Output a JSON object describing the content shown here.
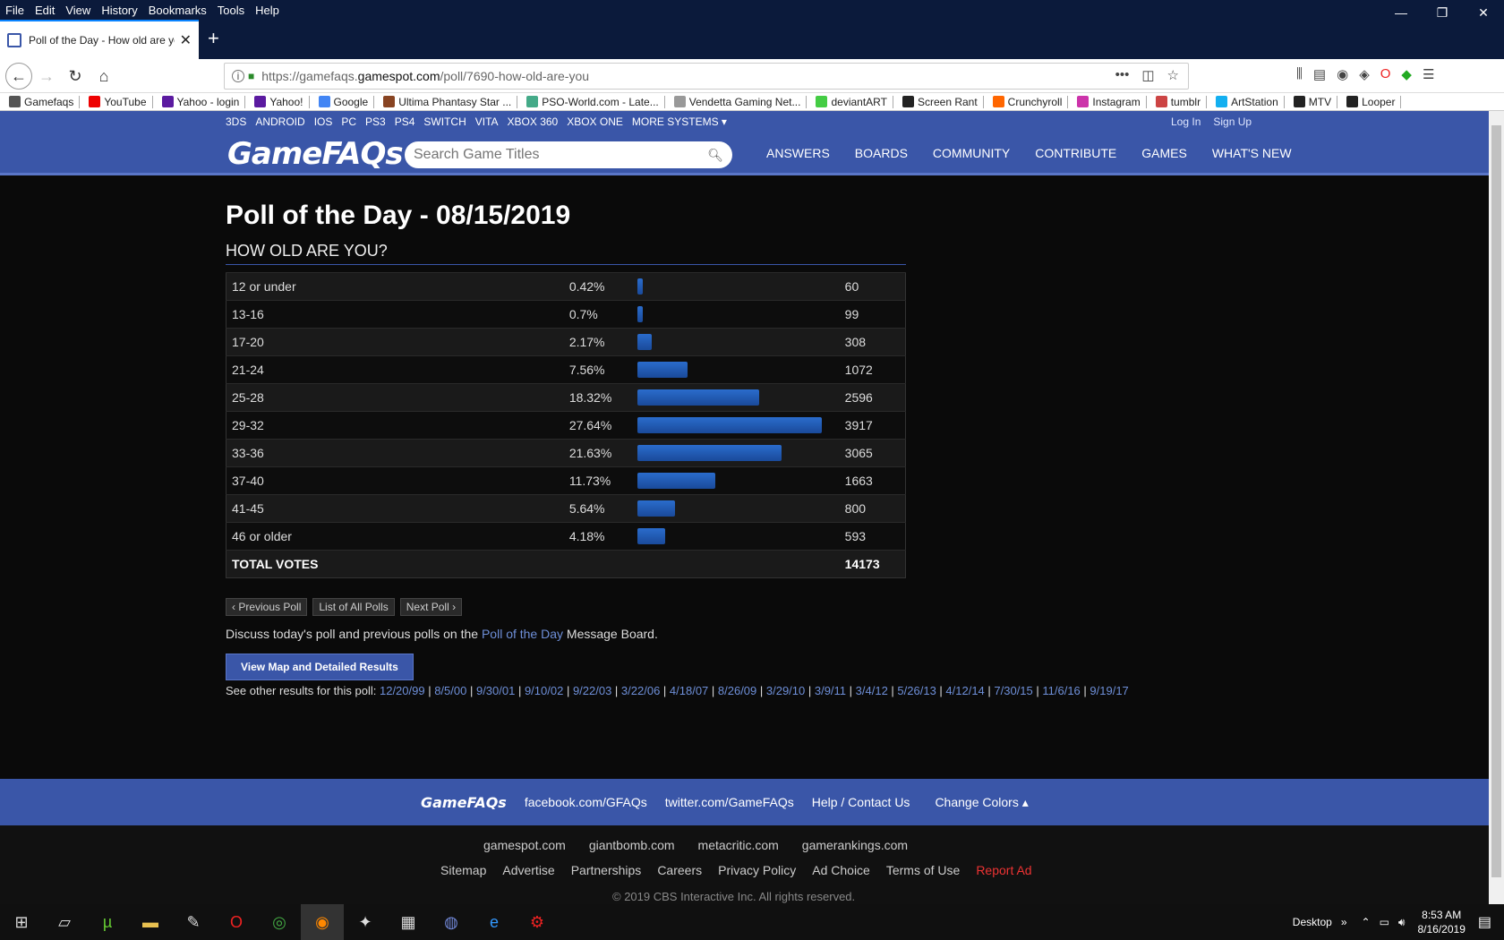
{
  "menu": [
    "File",
    "Edit",
    "View",
    "History",
    "Bookmarks",
    "Tools",
    "Help"
  ],
  "tab": {
    "title": "Poll of the Day - How old are you?"
  },
  "url": {
    "prefix": "https://gamefaqs.",
    "host": "gamespot.com",
    "path": "/poll/7690-how-old-are-you"
  },
  "bookmarks": [
    {
      "label": "Gamefaqs",
      "color": "#555"
    },
    {
      "label": "YouTube",
      "color": "#e00"
    },
    {
      "label": "Yahoo - login",
      "color": "#5b1aa0"
    },
    {
      "label": "Yahoo!",
      "color": "#5b1aa0"
    },
    {
      "label": "Google",
      "color": "#4285f4"
    },
    {
      "label": "Ultima Phantasy Star ...",
      "color": "#884422"
    },
    {
      "label": "PSO-World.com - Late...",
      "color": "#4a8"
    },
    {
      "label": "Vendetta Gaming Net...",
      "color": "#999"
    },
    {
      "label": "deviantART",
      "color": "#4c4"
    },
    {
      "label": "Screen Rant",
      "color": "#222"
    },
    {
      "label": "Crunchyroll",
      "color": "#f60"
    },
    {
      "label": "Instagram",
      "color": "#c3a"
    },
    {
      "label": "tumblr",
      "color": "#c44"
    },
    {
      "label": "ArtStation",
      "color": "#13aff0"
    },
    {
      "label": "MTV",
      "color": "#222"
    },
    {
      "label": "Looper",
      "color": "#222"
    }
  ],
  "site": {
    "systems": [
      "3DS",
      "ANDROID",
      "IOS",
      "PC",
      "PS3",
      "PS4",
      "SWITCH",
      "VITA",
      "XBOX 360",
      "XBOX ONE",
      "MORE SYSTEMS ▾"
    ],
    "login": "Log In",
    "signup": "Sign Up",
    "logo": "GameFAQs",
    "search_placeholder": "Search Game Titles",
    "nav": [
      "ANSWERS",
      "BOARDS",
      "COMMUNITY",
      "CONTRIBUTE",
      "GAMES",
      "WHAT'S NEW"
    ]
  },
  "poll": {
    "heading": "Poll of the Day - 08/15/2019",
    "question": "HOW OLD ARE YOU?",
    "rows": [
      {
        "answer": "12 or under",
        "pct": "0.42%",
        "fill": 0.42,
        "votes": "60"
      },
      {
        "answer": "13-16",
        "pct": "0.7%",
        "fill": 0.7,
        "votes": "99"
      },
      {
        "answer": "17-20",
        "pct": "2.17%",
        "fill": 2.17,
        "votes": "308"
      },
      {
        "answer": "21-24",
        "pct": "7.56%",
        "fill": 7.56,
        "votes": "1072"
      },
      {
        "answer": "25-28",
        "pct": "18.32%",
        "fill": 18.32,
        "votes": "2596"
      },
      {
        "answer": "29-32",
        "pct": "27.64%",
        "fill": 27.64,
        "votes": "3917"
      },
      {
        "answer": "33-36",
        "pct": "21.63%",
        "fill": 21.63,
        "votes": "3065"
      },
      {
        "answer": "37-40",
        "pct": "11.73%",
        "fill": 11.73,
        "votes": "1663"
      },
      {
        "answer": "41-45",
        "pct": "5.64%",
        "fill": 5.64,
        "votes": "800"
      },
      {
        "answer": "46 or older",
        "pct": "4.18%",
        "fill": 4.18,
        "votes": "593"
      }
    ],
    "total_label": "TOTAL VOTES",
    "total": "14173",
    "prev": "‹ Previous Poll",
    "list": "List of All Polls",
    "next": "Next Poll ›",
    "discuss_pre": "Discuss today's poll and previous polls on the ",
    "discuss_link": "Poll of the Day",
    "discuss_post": " Message Board.",
    "map_btn": "View Map and Detailed Results",
    "other_label": "See other results for this poll: ",
    "other_dates": [
      "12/20/99",
      "8/5/00",
      "9/30/01",
      "9/10/02",
      "9/22/03",
      "3/22/06",
      "4/18/07",
      "8/26/09",
      "3/29/10",
      "3/9/11",
      "3/4/12",
      "5/26/13",
      "4/12/14",
      "7/30/15",
      "11/6/16",
      "9/19/17"
    ]
  },
  "footer": {
    "logo": "GameFAQs",
    "links1": [
      "facebook.com/GFAQs",
      "twitter.com/GameFAQs",
      "Help / Contact Us",
      "Change Colors ▴"
    ],
    "sites": [
      "gamespot.com",
      "giantbomb.com",
      "metacritic.com",
      "gamerankings.com"
    ],
    "links2": [
      "Sitemap",
      "Advertise",
      "Partnerships",
      "Careers",
      "Privacy Policy",
      "Ad Choice",
      "Terms of Use"
    ],
    "report": "Report Ad",
    "copyright": "© 2019 CBS Interactive Inc. All rights reserved."
  },
  "taskbar": {
    "desktop": "Desktop",
    "time": "8:53 AM",
    "date": "8/16/2019"
  }
}
